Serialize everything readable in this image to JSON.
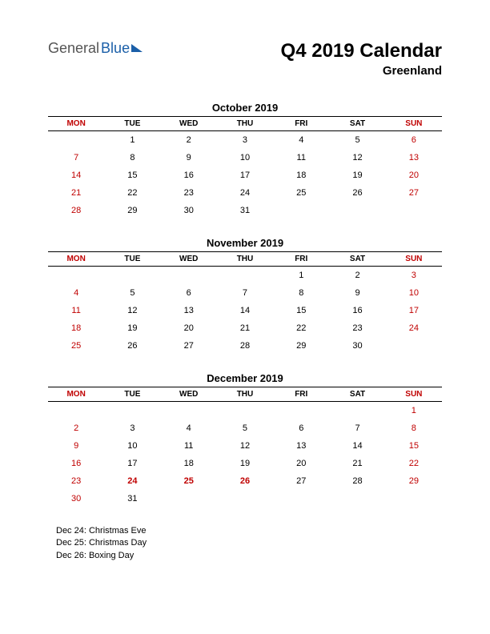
{
  "logo": {
    "part1": "General",
    "part2": "Blue"
  },
  "title": "Q4 2019 Calendar",
  "subtitle": "Greenland",
  "day_headers": [
    "MON",
    "TUE",
    "WED",
    "THU",
    "FRI",
    "SAT",
    "SUN"
  ],
  "red_columns": [
    0,
    6
  ],
  "months": [
    {
      "name": "October 2019",
      "weeks": [
        [
          "",
          "1",
          "2",
          "3",
          "4",
          "5",
          "6"
        ],
        [
          "7",
          "8",
          "9",
          "10",
          "11",
          "12",
          "13"
        ],
        [
          "14",
          "15",
          "16",
          "17",
          "18",
          "19",
          "20"
        ],
        [
          "21",
          "22",
          "23",
          "24",
          "25",
          "26",
          "27"
        ],
        [
          "28",
          "29",
          "30",
          "31",
          "",
          "",
          ""
        ]
      ],
      "holidays_bold": []
    },
    {
      "name": "November 2019",
      "weeks": [
        [
          "",
          "",
          "",
          "",
          "1",
          "2",
          "3"
        ],
        [
          "4",
          "5",
          "6",
          "7",
          "8",
          "9",
          "10"
        ],
        [
          "11",
          "12",
          "13",
          "14",
          "15",
          "16",
          "17"
        ],
        [
          "18",
          "19",
          "20",
          "21",
          "22",
          "23",
          "24"
        ],
        [
          "25",
          "26",
          "27",
          "28",
          "29",
          "30",
          ""
        ]
      ],
      "holidays_bold": []
    },
    {
      "name": "December 2019",
      "weeks": [
        [
          "",
          "",
          "",
          "",
          "",
          "",
          "1"
        ],
        [
          "2",
          "3",
          "4",
          "5",
          "6",
          "7",
          "8"
        ],
        [
          "9",
          "10",
          "11",
          "12",
          "13",
          "14",
          "15"
        ],
        [
          "16",
          "17",
          "18",
          "19",
          "20",
          "21",
          "22"
        ],
        [
          "23",
          "24",
          "25",
          "26",
          "27",
          "28",
          "29"
        ],
        [
          "30",
          "31",
          "",
          "",
          "",
          "",
          ""
        ]
      ],
      "holidays_bold": [
        "24",
        "25",
        "26"
      ]
    }
  ],
  "holiday_notes": [
    "Dec 24: Christmas Eve",
    "Dec 25: Christmas Day",
    "Dec 26: Boxing Day"
  ],
  "colors": {
    "red": "#c00000",
    "black": "#000000",
    "logo_blue": "#1b5fa8",
    "logo_gray": "#555555",
    "background": "#ffffff"
  }
}
